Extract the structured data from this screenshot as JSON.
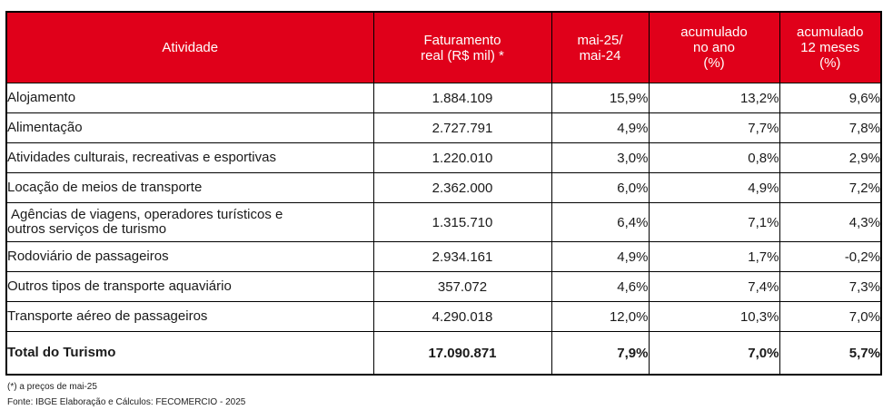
{
  "table": {
    "headers": {
      "atividade": "Atividade",
      "faturamento": [
        "Faturamento",
        "real (R$ mil) *"
      ],
      "mensal": [
        "mai-25/",
        "mai-24"
      ],
      "acum_ano": [
        "acumulado",
        "no ano",
        "(%)"
      ],
      "acum_12": [
        "acumulado",
        "12 meses",
        "(%)"
      ]
    },
    "rows": [
      {
        "atividade": "Alojamento",
        "faturamento": "1.884.109",
        "mensal": "15,9%",
        "acum_ano": "13,2%",
        "acum_12": "9,6%"
      },
      {
        "atividade": "Alimentação",
        "faturamento": "2.727.791",
        "mensal": "4,9%",
        "acum_ano": "7,7%",
        "acum_12": "7,8%"
      },
      {
        "atividade": "Atividades culturais, recreativas e esportivas",
        "faturamento": "1.220.010",
        "mensal": "3,0%",
        "acum_ano": "0,8%",
        "acum_12": "2,9%"
      },
      {
        "atividade": "Locação de meios de transporte",
        "faturamento": "2.362.000",
        "mensal": "6,0%",
        "acum_ano": "4,9%",
        "acum_12": "7,2%"
      },
      {
        "atividade": [
          "Agências de viagens, operadores turísticos e",
          "outros serviços de turismo"
        ],
        "faturamento": "1.315.710",
        "mensal": "6,4%",
        "acum_ano": "7,1%",
        "acum_12": "4,3%"
      },
      {
        "atividade": "Rodoviário de passageiros",
        "faturamento": "2.934.161",
        "mensal": "4,9%",
        "acum_ano": "1,7%",
        "acum_12": "-0,2%"
      },
      {
        "atividade": "Outros tipos de transporte aquaviário",
        "faturamento": "357.072",
        "mensal": "4,6%",
        "acum_ano": "7,4%",
        "acum_12": "7,3%"
      },
      {
        "atividade": "Transporte aéreo de passageiros",
        "faturamento": "4.290.018",
        "mensal": "12,0%",
        "acum_ano": "10,3%",
        "acum_12": "7,0%"
      }
    ],
    "total": {
      "atividade": "Total do Turismo",
      "faturamento": "17.090.871",
      "mensal": "7,9%",
      "acum_ano": "7,0%",
      "acum_12": "5,7%"
    }
  },
  "notes": {
    "asterisk": "(*) a preços de mai-25",
    "source": "Fonte: IBGE Elaboração e Cálculos: FECOMERCIO - 2025"
  },
  "colors": {
    "header_bg": "#e0001a",
    "header_text": "#ffffff",
    "border": "#000000"
  }
}
